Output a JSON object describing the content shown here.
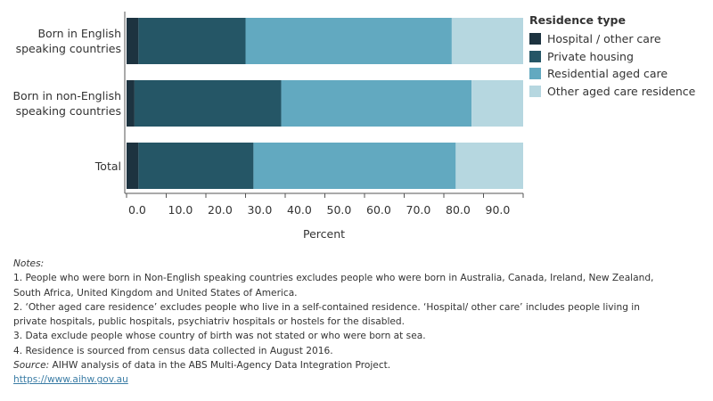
{
  "chart_data": {
    "type": "bar",
    "orientation": "horizontal",
    "stacked": true,
    "categories": [
      "Born in English\nspeaking countries",
      "Born in non-English\nspeaking countries",
      "Total"
    ],
    "series": [
      {
        "name": "Hospital / other care",
        "color": "#1d3340",
        "values": [
          3,
          2,
          3
        ]
      },
      {
        "name": "Private housing",
        "color": "#255666",
        "values": [
          27,
          37,
          29
        ]
      },
      {
        "name": "Residential aged care",
        "color": "#62a9c0",
        "values": [
          52,
          48,
          51
        ]
      },
      {
        "name": "Other aged care residence",
        "color": "#b6d7e0",
        "values": [
          18,
          13,
          17
        ]
      }
    ],
    "xlabel": "Percent",
    "ylabel": "",
    "xlim": [
      0,
      100
    ],
    "xticks": [
      "0.0",
      "10.0",
      "20.0",
      "30.0",
      "40.0",
      "50.0",
      "60.0",
      "70.0",
      "80.0",
      "90.0"
    ],
    "legend": {
      "title": "Residence type",
      "position": "top-right"
    },
    "grid": false
  },
  "notes": {
    "heading": "Notes:",
    "lines": [
      "1. People who were born in Non-English speaking countries excludes people who were born in Australia, Canada, Ireland, New Zealand,",
      "South Africa, United Kingdom and United States of America.",
      "2. ‘Other aged care residence’ excludes people who live in a self-contained residence. ‘Hospital/ other care’ includes people living in",
      "private hospitals, public hospitals, psychiatriv hospitals or hostels for the disabled.",
      "3. Data exclude people whose country of birth was not stated or who were born at sea.",
      "4. Residence is sourced from census data collected in August 2016."
    ],
    "source_label": "Source:",
    "source_text": " AIHW analysis of data in the ABS Multi-Agency Data Integration Project.",
    "link": "https://www.aihw.gov.au"
  }
}
